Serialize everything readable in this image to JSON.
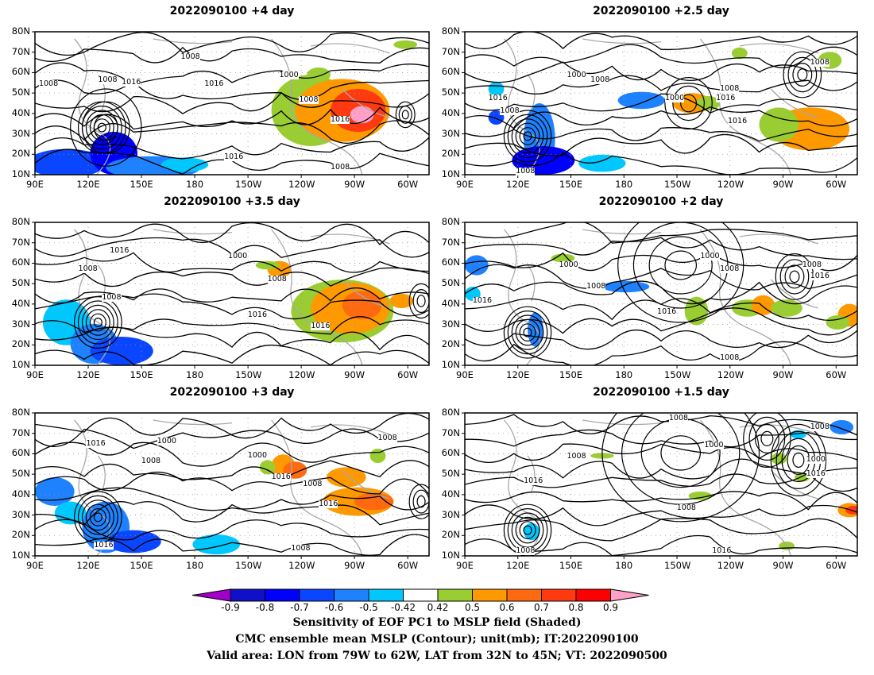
{
  "panels": [
    {
      "title": "2022090100  +4 day",
      "lead_days": 4
    },
    {
      "title": "2022090100  +2.5 day",
      "lead_days": 2.5
    },
    {
      "title": "2022090100  +3.5 day",
      "lead_days": 3.5
    },
    {
      "title": "2022090100  +2 day",
      "lead_days": 2
    },
    {
      "title": "2022090100  +3 day",
      "lead_days": 3
    },
    {
      "title": "2022090100  +1.5 day",
      "lead_days": 1.5
    }
  ],
  "axes": {
    "lat_labels": [
      "80N",
      "70N",
      "60N",
      "50N",
      "40N",
      "30N",
      "20N",
      "10N"
    ],
    "lon_labels": [
      "90E",
      "120E",
      "150E",
      "180",
      "150W",
      "120W",
      "90W",
      "60W"
    ]
  },
  "contour_labels": [
    [
      "1008",
      "1008",
      "1016",
      "1008",
      "1016",
      "1000",
      "1008",
      "1016",
      "1016",
      "1008"
    ],
    [
      "1008",
      "1000",
      "1008",
      "1008",
      "1016",
      "1000",
      "1008",
      "1016",
      "1016",
      "1008"
    ],
    [
      "1008",
      "1016",
      "1000",
      "1008",
      "1008",
      "1016",
      "1016"
    ],
    [
      "1000",
      "1008",
      "1000",
      "1008",
      "1016",
      "1008",
      "1016",
      "1016",
      "1008"
    ],
    [
      "1016",
      "1000",
      "1008",
      "1000",
      "1016",
      "1008",
      "1008",
      "1016",
      "1016",
      "1008"
    ],
    [
      "1008",
      "1000",
      "1008",
      "1016",
      "1008",
      "1000",
      "1016",
      "1008",
      "1016",
      "1008"
    ]
  ],
  "colorbar": {
    "ticks": [
      "-0.9",
      "-0.8",
      "-0.7",
      "-0.6",
      "-0.5",
      "-0.42",
      "0.42",
      "0.5",
      "0.6",
      "0.7",
      "0.8",
      "0.9"
    ],
    "colors": [
      "#a000c8",
      "#1010c8",
      "#0000ff",
      "#0a46ff",
      "#1e82ff",
      "#00c8ff",
      "#ffffff",
      "#9acd32",
      "#ff9900",
      "#ff6a10",
      "#ff3a10",
      "#ff0000",
      "#ffa0c8"
    ]
  },
  "captions": {
    "line1": "Sensitivity of EOF PC1 to MSLP field (Shaded)",
    "line2": "CMC ensemble mean MSLP (Contour); unit(mb); IT:2022090100",
    "line3": "Valid area: LON from 79W to 62W, LAT from 32N to 45N; VT: 2022090500"
  }
}
